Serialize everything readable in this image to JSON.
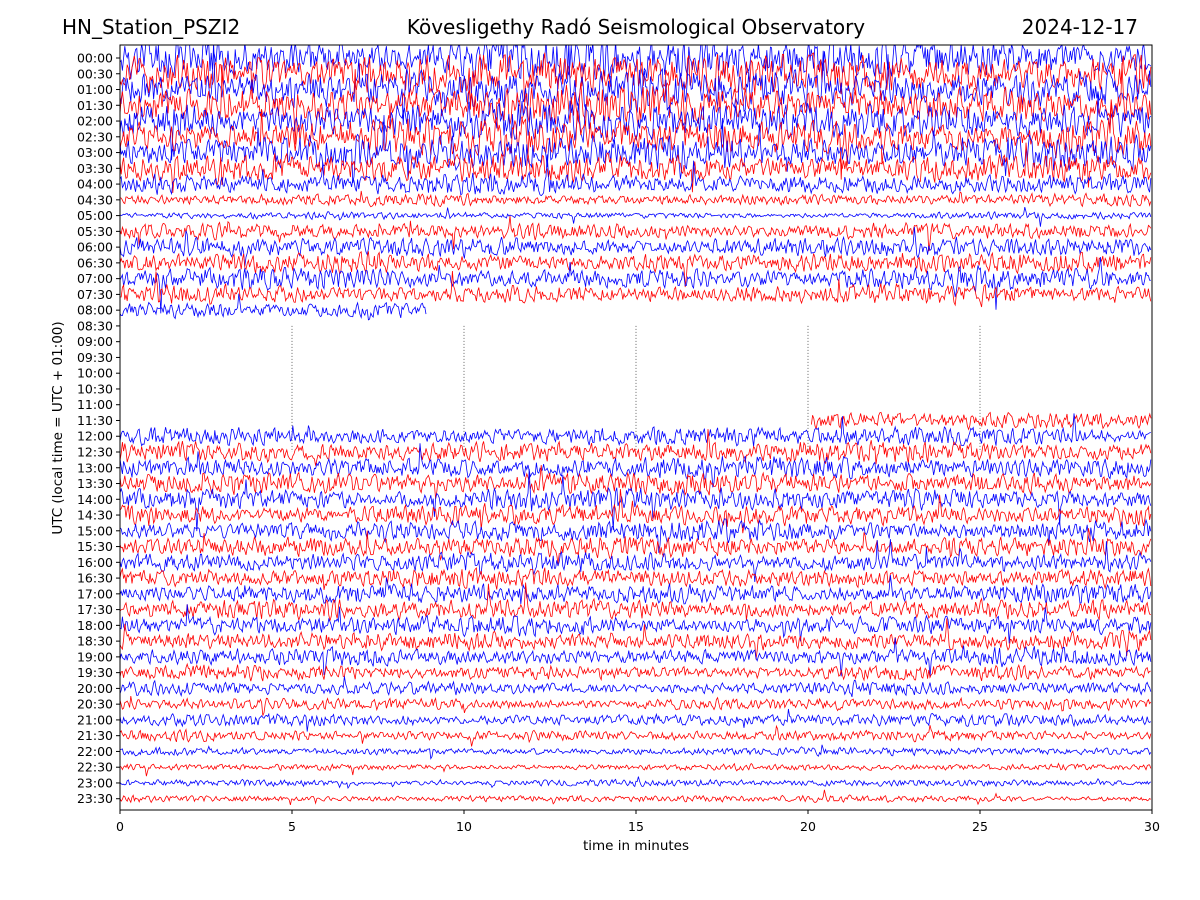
{
  "header": {
    "station": "HN_Station_PSZI2",
    "observatory": "Kövesligethy Radó Seismological Observatory",
    "date": "2024-12-17"
  },
  "chart_data": {
    "type": "line",
    "title": "Kövesligethy Radó Seismological Observatory",
    "xlabel": "time in minutes",
    "ylabel": "UTC (local time = UTC + 01:00)",
    "xlim": [
      0,
      30
    ],
    "x_ticks": [
      "0",
      "5",
      "10",
      "15",
      "20",
      "25",
      "30"
    ],
    "y_ticks": [
      "00:00",
      "00:30",
      "01:00",
      "01:30",
      "02:00",
      "02:30",
      "03:00",
      "03:30",
      "04:00",
      "04:30",
      "05:00",
      "05:30",
      "06:00",
      "06:30",
      "07:00",
      "07:30",
      "08:00",
      "08:30",
      "09:00",
      "09:30",
      "10:00",
      "10:30",
      "11:00",
      "11:30",
      "12:00",
      "12:30",
      "13:00",
      "13:30",
      "14:00",
      "14:30",
      "15:00",
      "15:30",
      "16:00",
      "16:30",
      "17:00",
      "17:30",
      "18:00",
      "18:30",
      "19:00",
      "19:30",
      "20:00",
      "20:30",
      "21:00",
      "21:30",
      "22:00",
      "22:30",
      "23:00",
      "23:30"
    ],
    "trace_colors": [
      "#0000ff",
      "#ff0000"
    ],
    "minute_markers": [
      5,
      10,
      15,
      20,
      25
    ],
    "traces": [
      {
        "row": "00:00",
        "color": "#0000ff",
        "amplitude": 3.2,
        "start": 0,
        "end": 30
      },
      {
        "row": "00:30",
        "color": "#ff0000",
        "amplitude": 3.2,
        "start": 0,
        "end": 30
      },
      {
        "row": "01:00",
        "color": "#0000ff",
        "amplitude": 3.1,
        "start": 0,
        "end": 30
      },
      {
        "row": "01:30",
        "color": "#ff0000",
        "amplitude": 3.0,
        "start": 0,
        "end": 30
      },
      {
        "row": "02:00",
        "color": "#0000ff",
        "amplitude": 3.0,
        "start": 0,
        "end": 30
      },
      {
        "row": "02:30",
        "color": "#ff0000",
        "amplitude": 2.8,
        "start": 0,
        "end": 30
      },
      {
        "row": "03:00",
        "color": "#0000ff",
        "amplitude": 2.6,
        "start": 0,
        "end": 30
      },
      {
        "row": "03:30",
        "color": "#ff0000",
        "amplitude": 2.2,
        "start": 0,
        "end": 30
      },
      {
        "row": "04:00",
        "color": "#0000ff",
        "amplitude": 1.6,
        "start": 0,
        "end": 30
      },
      {
        "row": "04:30",
        "color": "#ff0000",
        "amplitude": 0.9,
        "start": 0,
        "end": 30
      },
      {
        "row": "05:00",
        "color": "#0000ff",
        "amplitude": 0.5,
        "start": 0,
        "end": 30
      },
      {
        "row": "05:30",
        "color": "#ff0000",
        "amplitude": 1.2,
        "start": 0,
        "end": 30
      },
      {
        "row": "06:00",
        "color": "#0000ff",
        "amplitude": 1.5,
        "start": 0,
        "end": 30
      },
      {
        "row": "06:30",
        "color": "#ff0000",
        "amplitude": 1.5,
        "start": 0,
        "end": 30
      },
      {
        "row": "07:00",
        "color": "#0000ff",
        "amplitude": 1.6,
        "start": 0,
        "end": 30
      },
      {
        "row": "07:30",
        "color": "#ff0000",
        "amplitude": 1.4,
        "start": 0,
        "end": 30
      },
      {
        "row": "08:00",
        "color": "#0000ff",
        "amplitude": 1.2,
        "start": 0,
        "end": 8.9
      },
      {
        "row": "11:30",
        "color": "#ff0000",
        "amplitude": 1.3,
        "start": 20.1,
        "end": 30
      },
      {
        "row": "12:00",
        "color": "#0000ff",
        "amplitude": 1.4,
        "start": 0,
        "end": 30
      },
      {
        "row": "12:30",
        "color": "#ff0000",
        "amplitude": 1.6,
        "start": 0,
        "end": 30
      },
      {
        "row": "13:00",
        "color": "#0000ff",
        "amplitude": 1.7,
        "start": 0,
        "end": 30
      },
      {
        "row": "13:30",
        "color": "#ff0000",
        "amplitude": 1.7,
        "start": 0,
        "end": 30
      },
      {
        "row": "14:00",
        "color": "#0000ff",
        "amplitude": 1.7,
        "start": 0,
        "end": 30
      },
      {
        "row": "14:30",
        "color": "#ff0000",
        "amplitude": 1.6,
        "start": 0,
        "end": 30
      },
      {
        "row": "15:00",
        "color": "#0000ff",
        "amplitude": 1.6,
        "start": 0,
        "end": 30
      },
      {
        "row": "15:30",
        "color": "#ff0000",
        "amplitude": 1.6,
        "start": 0,
        "end": 30
      },
      {
        "row": "16:00",
        "color": "#0000ff",
        "amplitude": 1.5,
        "start": 0,
        "end": 30
      },
      {
        "row": "16:30",
        "color": "#ff0000",
        "amplitude": 1.5,
        "start": 0,
        "end": 30
      },
      {
        "row": "17:00",
        "color": "#0000ff",
        "amplitude": 1.5,
        "start": 0,
        "end": 30
      },
      {
        "row": "17:30",
        "color": "#ff0000",
        "amplitude": 1.5,
        "start": 0,
        "end": 30
      },
      {
        "row": "18:00",
        "color": "#0000ff",
        "amplitude": 1.4,
        "start": 0,
        "end": 30
      },
      {
        "row": "18:30",
        "color": "#ff0000",
        "amplitude": 1.4,
        "start": 0,
        "end": 30
      },
      {
        "row": "19:00",
        "color": "#0000ff",
        "amplitude": 1.3,
        "start": 0,
        "end": 30
      },
      {
        "row": "19:30",
        "color": "#ff0000",
        "amplitude": 1.1,
        "start": 0,
        "end": 30
      },
      {
        "row": "20:00",
        "color": "#0000ff",
        "amplitude": 1.0,
        "start": 0,
        "end": 30
      },
      {
        "row": "20:30",
        "color": "#ff0000",
        "amplitude": 0.9,
        "start": 0,
        "end": 30
      },
      {
        "row": "21:00",
        "color": "#0000ff",
        "amplitude": 0.9,
        "start": 0,
        "end": 30
      },
      {
        "row": "21:30",
        "color": "#ff0000",
        "amplitude": 0.8,
        "start": 0,
        "end": 30
      },
      {
        "row": "22:00",
        "color": "#0000ff",
        "amplitude": 0.6,
        "start": 0,
        "end": 30
      },
      {
        "row": "22:30",
        "color": "#ff0000",
        "amplitude": 0.5,
        "start": 0,
        "end": 30
      },
      {
        "row": "23:00",
        "color": "#0000ff",
        "amplitude": 0.5,
        "start": 0,
        "end": 30
      },
      {
        "row": "23:30",
        "color": "#ff0000",
        "amplitude": 0.5,
        "start": 0,
        "end": 30
      }
    ]
  }
}
